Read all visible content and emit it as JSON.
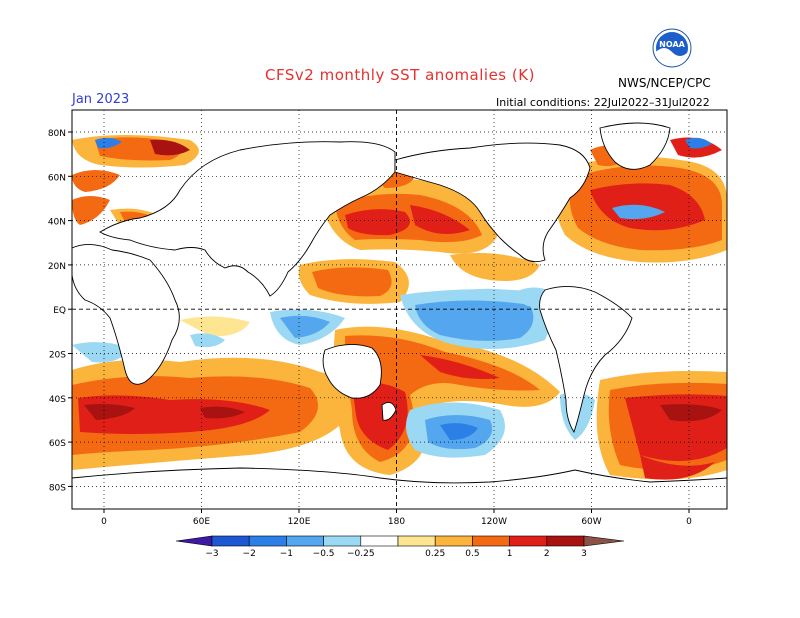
{
  "title": "CFSv2 monthly SST anomalies (K)",
  "forecast_month": "Jan 2023",
  "agency": "NWS/NCEP/CPC",
  "initial_conditions": "Initial conditions: 22Jul2022–31Jul2022",
  "logo": {
    "icon": "noaa-logo-icon",
    "text": "NOAA"
  },
  "map": {
    "lat_ticks": [
      "80N",
      "60N",
      "40N",
      "20N",
      "EQ",
      "20S",
      "40S",
      "60S",
      "80S"
    ],
    "lon_ticks": [
      "0",
      "60E",
      "120E",
      "180",
      "120W",
      "60W",
      "0"
    ]
  },
  "colorbar": {
    "labels": [
      "−3",
      "−2",
      "−1",
      "−0.5",
      "−0.25",
      "0.25",
      "0.5",
      "1",
      "2",
      "3"
    ],
    "colors": [
      "#3e1aa4",
      "#1c58d4",
      "#2c7fe6",
      "#54a6ee",
      "#9ad8f4",
      "#ffffff",
      "#fde591",
      "#fbb43c",
      "#f46a12",
      "#e02018",
      "#a81210",
      "#8c5248"
    ]
  },
  "colors": {
    "title": "#e6302e",
    "date": "#2f3fd6"
  }
}
